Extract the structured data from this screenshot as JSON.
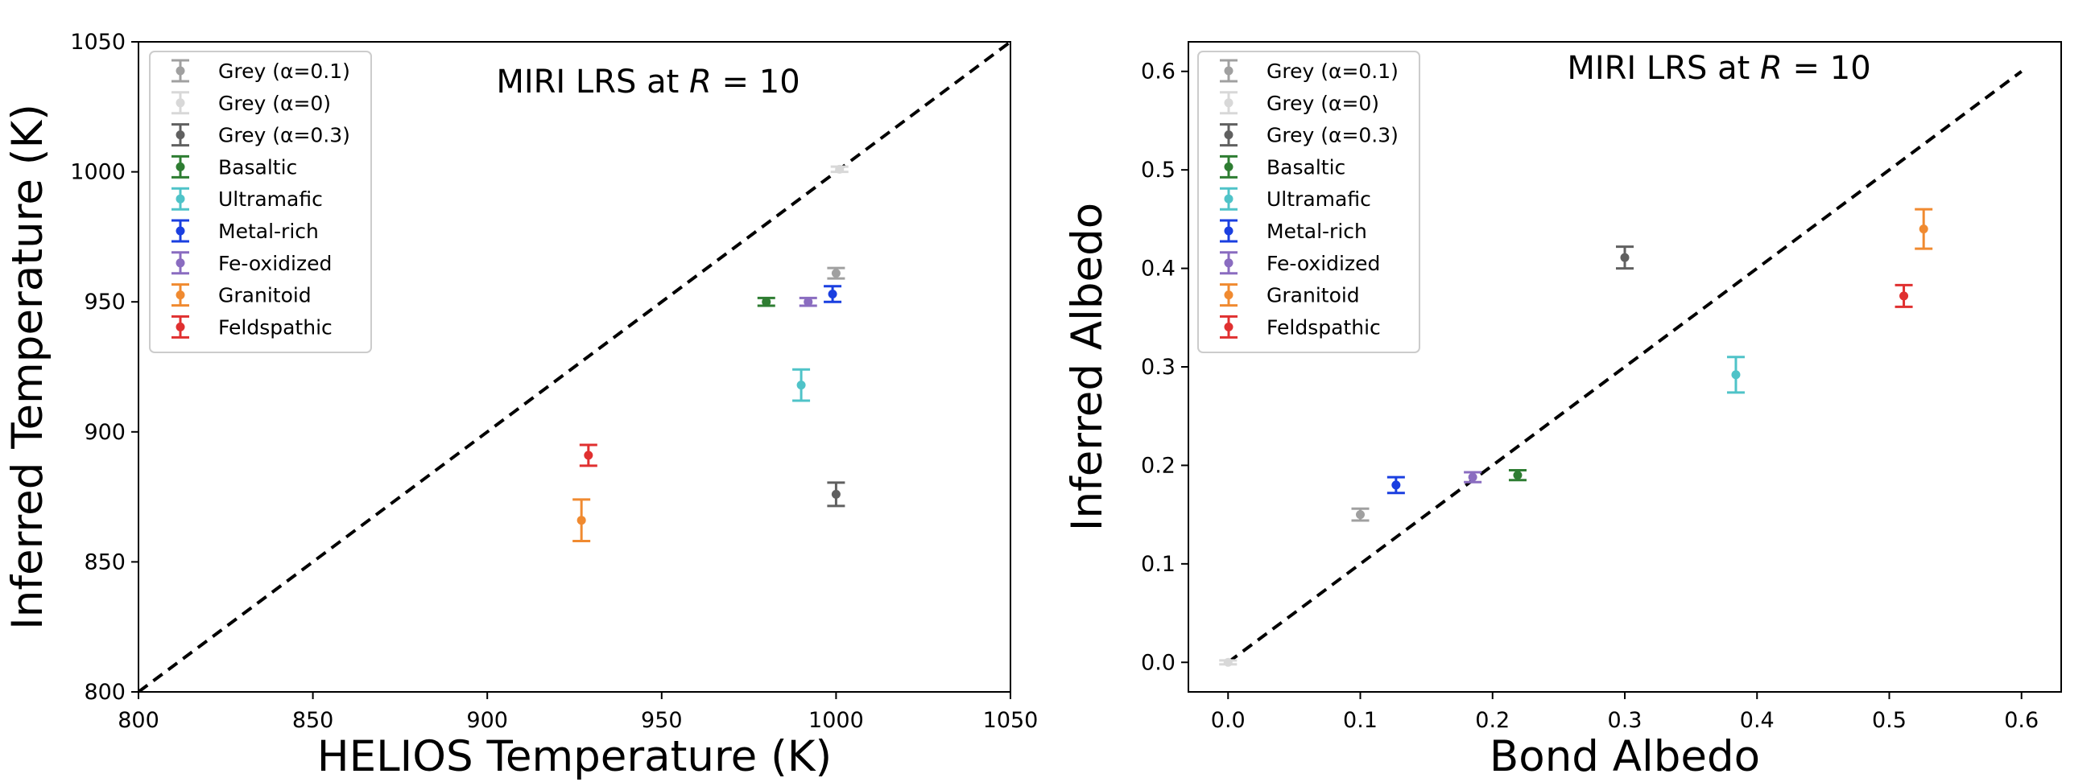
{
  "chart_data": [
    {
      "type": "scatter",
      "id": "left",
      "annotation": {
        "prefix": "MIRI LRS at ",
        "var": "R",
        "suffix": " = 10"
      },
      "xlabel": "HELIOS Temperature (K)",
      "ylabel": "Inferred Temperature (K)",
      "xlim": [
        800,
        1050
      ],
      "ylim": [
        800,
        1050
      ],
      "xticks": [
        800,
        850,
        900,
        950,
        1000,
        1050
      ],
      "yticks": [
        800,
        850,
        900,
        950,
        1000,
        1050
      ],
      "xtick_labels": [
        "800",
        "850",
        "900",
        "950",
        "1000",
        "1050"
      ],
      "ytick_labels": [
        "800",
        "850",
        "900",
        "950",
        "1000",
        "1050"
      ],
      "one_to_one_line": true,
      "legend_position": "top-left",
      "series": [
        {
          "name": "Grey (α=0.1)",
          "color": "#a0a0a0",
          "points": [
            {
              "x": 1000,
              "y": 961,
              "err": 2
            }
          ]
        },
        {
          "name": "Grey (α=0)",
          "color": "#d8d8d8",
          "points": [
            {
              "x": 1001,
              "y": 1001,
              "err": 1
            }
          ]
        },
        {
          "name": "Grey (α=0.3)",
          "color": "#606060",
          "points": [
            {
              "x": 1000,
              "y": 876,
              "err": 4.5
            }
          ]
        },
        {
          "name": "Basaltic",
          "color": "#2e7d32",
          "points": [
            {
              "x": 980,
              "y": 950,
              "err": 1.5
            }
          ]
        },
        {
          "name": "Ultramafic",
          "color": "#4fc3c8",
          "points": [
            {
              "x": 990,
              "y": 918,
              "err": 6
            }
          ]
        },
        {
          "name": "Metal-rich",
          "color": "#1a3fe0",
          "points": [
            {
              "x": 999,
              "y": 953,
              "err": 3
            }
          ]
        },
        {
          "name": "Fe-oxidized",
          "color": "#8a6cc0",
          "points": [
            {
              "x": 992,
              "y": 950,
              "err": 1.5
            }
          ]
        },
        {
          "name": "Granitoid",
          "color": "#f08a30",
          "points": [
            {
              "x": 927,
              "y": 866,
              "err": 8
            }
          ]
        },
        {
          "name": "Feldspathic",
          "color": "#e03030",
          "points": [
            {
              "x": 929,
              "y": 891,
              "err": 4
            }
          ]
        }
      ]
    },
    {
      "type": "scatter",
      "id": "right",
      "annotation": {
        "prefix": "MIRI LRS at ",
        "var": "R",
        "suffix": " = 10"
      },
      "xlabel": "Bond Albedo",
      "ylabel": "Inferred Albedo",
      "xlim": [
        -0.03,
        0.63
      ],
      "ylim": [
        -0.03,
        0.63
      ],
      "xticks": [
        0,
        0.1,
        0.2,
        0.3,
        0.4,
        0.5,
        0.6
      ],
      "yticks": [
        0,
        0.1,
        0.2,
        0.3,
        0.4,
        0.5,
        0.6
      ],
      "xtick_labels": [
        "0.0",
        "0.1",
        "0.2",
        "0.3",
        "0.4",
        "0.5",
        "0.6"
      ],
      "ytick_labels": [
        "0.0",
        "0.1",
        "0.2",
        "0.3",
        "0.4",
        "0.5",
        "0.6"
      ],
      "one_to_one_line": true,
      "line_range": [
        0,
        0.6
      ],
      "legend_position": "top-left",
      "series": [
        {
          "name": "Grey (α=0.1)",
          "color": "#a0a0a0",
          "points": [
            {
              "x": 0.1,
              "y": 0.15,
              "err": 0.006
            }
          ]
        },
        {
          "name": "Grey (α=0)",
          "color": "#d8d8d8",
          "points": [
            {
              "x": 0.0,
              "y": 0.0,
              "err": 0.002
            }
          ]
        },
        {
          "name": "Grey (α=0.3)",
          "color": "#606060",
          "points": [
            {
              "x": 0.3,
              "y": 0.411,
              "err": 0.011
            }
          ]
        },
        {
          "name": "Basaltic",
          "color": "#2e7d32",
          "points": [
            {
              "x": 0.219,
              "y": 0.19,
              "err": 0.005
            }
          ]
        },
        {
          "name": "Ultramafic",
          "color": "#4fc3c8",
          "points": [
            {
              "x": 0.384,
              "y": 0.292,
              "err": 0.018
            }
          ]
        },
        {
          "name": "Metal-rich",
          "color": "#1a3fe0",
          "points": [
            {
              "x": 0.127,
              "y": 0.18,
              "err": 0.008
            }
          ]
        },
        {
          "name": "Fe-oxidized",
          "color": "#8a6cc0",
          "points": [
            {
              "x": 0.185,
              "y": 0.188,
              "err": 0.005
            }
          ]
        },
        {
          "name": "Granitoid",
          "color": "#f08a30",
          "points": [
            {
              "x": 0.526,
              "y": 0.44,
              "err": 0.02
            }
          ]
        },
        {
          "name": "Feldspathic",
          "color": "#e03030",
          "points": [
            {
              "x": 0.511,
              "y": 0.372,
              "err": 0.011
            }
          ]
        }
      ]
    }
  ]
}
